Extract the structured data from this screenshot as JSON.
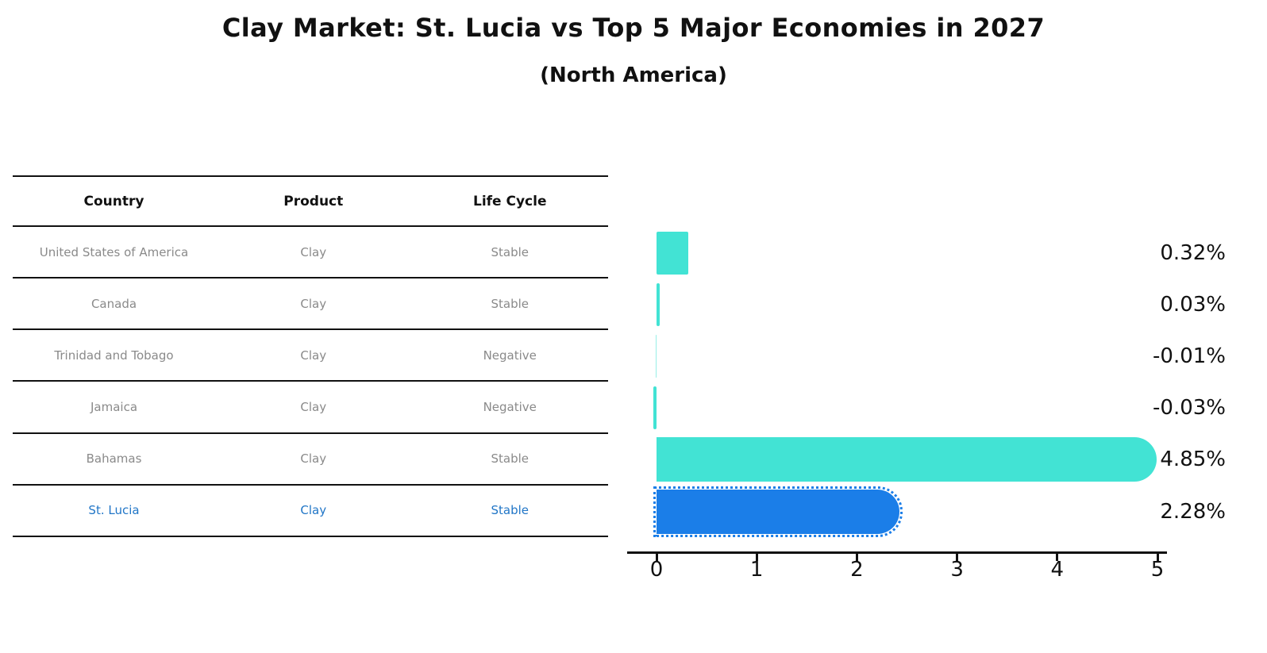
{
  "title": "Clay Market: St. Lucia vs Top 5 Major Economies in 2027",
  "subtitle": "(North America)",
  "table": {
    "columns": [
      "Country",
      "Product",
      "Life Cycle"
    ],
    "rows": [
      {
        "country": "United States of America",
        "product": "Clay",
        "life_cycle": "Stable",
        "highlight": false
      },
      {
        "country": "Canada",
        "product": "Clay",
        "life_cycle": "Stable",
        "highlight": false
      },
      {
        "country": "Trinidad and Tobago",
        "product": "Clay",
        "life_cycle": "Negative",
        "highlight": false
      },
      {
        "country": "Jamaica",
        "product": "Clay",
        "life_cycle": "Negative",
        "highlight": false
      },
      {
        "country": "Bahamas",
        "product": "Clay",
        "life_cycle": "Stable",
        "highlight": false
      },
      {
        "country": "St. Lucia",
        "product": "Clay",
        "life_cycle": "Stable",
        "highlight": true
      }
    ]
  },
  "chart_data": {
    "type": "bar",
    "orientation": "horizontal",
    "title": "Clay Market: St. Lucia vs Top 5 Major Economies in 2027 (North America)",
    "categories": [
      "United States of America",
      "Canada",
      "Trinidad and Tobago",
      "Jamaica",
      "Bahamas",
      "St. Lucia"
    ],
    "values": [
      0.32,
      0.03,
      -0.01,
      -0.03,
      4.85,
      2.28
    ],
    "labels": [
      "0.32%",
      "0.03%",
      "-0.01%",
      "-0.03%",
      "4.85%",
      "2.28%"
    ],
    "xlabel": "",
    "ylabel": "",
    "xlim": [
      0,
      5
    ],
    "xticks": [
      "0",
      "1",
      "2",
      "3",
      "4",
      "5"
    ],
    "grid": false,
    "legend": "none",
    "highlight_index": 5,
    "colors": {
      "default_bar": "#42E3D4",
      "highlight_bar": "#1B7EE8",
      "highlight_text": "#2176C7",
      "axis": "#111111"
    }
  }
}
